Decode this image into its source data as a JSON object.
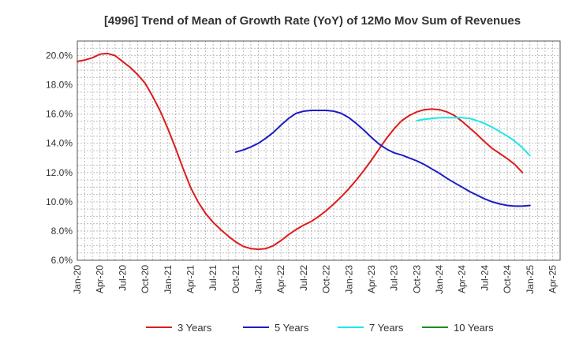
{
  "chart_data": {
    "type": "line",
    "title": "[4996]  Trend of Mean of Growth Rate (YoY) of 12Mo Mov Sum of Revenues",
    "xlabel": "",
    "ylabel": "",
    "ylim": [
      6.0,
      21.0
    ],
    "yticks": [
      6.0,
      8.0,
      10.0,
      12.0,
      14.0,
      16.0,
      18.0,
      20.0
    ],
    "ytick_labels": [
      "6.0%",
      "8.0%",
      "10.0%",
      "12.0%",
      "14.0%",
      "16.0%",
      "18.0%",
      "20.0%"
    ],
    "xticks": [
      "Jan-20",
      "Apr-20",
      "Jul-20",
      "Oct-20",
      "Jan-21",
      "Apr-21",
      "Jul-21",
      "Oct-21",
      "Jan-22",
      "Apr-22",
      "Jul-22",
      "Oct-22",
      "Jan-23",
      "Apr-23",
      "Jul-23",
      "Oct-23",
      "Jan-24",
      "Apr-24",
      "Jul-24",
      "Oct-24",
      "Jan-25",
      "Apr-25"
    ],
    "x_start": "Jan-20",
    "x_months": 64,
    "grid": true,
    "legend_position": "bottom",
    "series": [
      {
        "name": "3 Years",
        "color": "#dd1c1c",
        "start_month": 0,
        "values": [
          19.6,
          19.7,
          19.85,
          20.1,
          20.15,
          20.0,
          19.6,
          19.2,
          18.7,
          18.1,
          17.2,
          16.2,
          15.0,
          13.7,
          12.3,
          11.0,
          10.0,
          9.2,
          8.6,
          8.1,
          7.65,
          7.25,
          6.95,
          6.8,
          6.75,
          6.8,
          7.0,
          7.35,
          7.75,
          8.1,
          8.4,
          8.65,
          9.0,
          9.4,
          9.85,
          10.35,
          10.9,
          11.5,
          12.15,
          12.85,
          13.6,
          14.35,
          15.0,
          15.55,
          15.9,
          16.15,
          16.3,
          16.35,
          16.3,
          16.15,
          15.9,
          15.5,
          15.05,
          14.6,
          14.1,
          13.65,
          13.3,
          12.95,
          12.55,
          12.0
        ]
      },
      {
        "name": "5 Years",
        "color": "#1c1cc6",
        "start_month": 21,
        "values": [
          13.4,
          13.55,
          13.75,
          14.0,
          14.35,
          14.75,
          15.25,
          15.7,
          16.05,
          16.2,
          16.25,
          16.25,
          16.25,
          16.2,
          16.05,
          15.75,
          15.35,
          14.9,
          14.4,
          13.95,
          13.6,
          13.35,
          13.2,
          13.0,
          12.8,
          12.55,
          12.25,
          11.95,
          11.6,
          11.3,
          11.0,
          10.7,
          10.45,
          10.2,
          10.0,
          9.85,
          9.75,
          9.7,
          9.7,
          9.75
        ]
      },
      {
        "name": "7 Years",
        "color": "#1ce8e8",
        "start_month": 45,
        "values": [
          15.55,
          15.65,
          15.7,
          15.75,
          15.75,
          15.75,
          15.75,
          15.7,
          15.55,
          15.35,
          15.1,
          14.8,
          14.5,
          14.15,
          13.7,
          13.15
        ]
      },
      {
        "name": "10 Years",
        "color": "#1a8c1a",
        "start_month": 0,
        "values": []
      }
    ]
  }
}
